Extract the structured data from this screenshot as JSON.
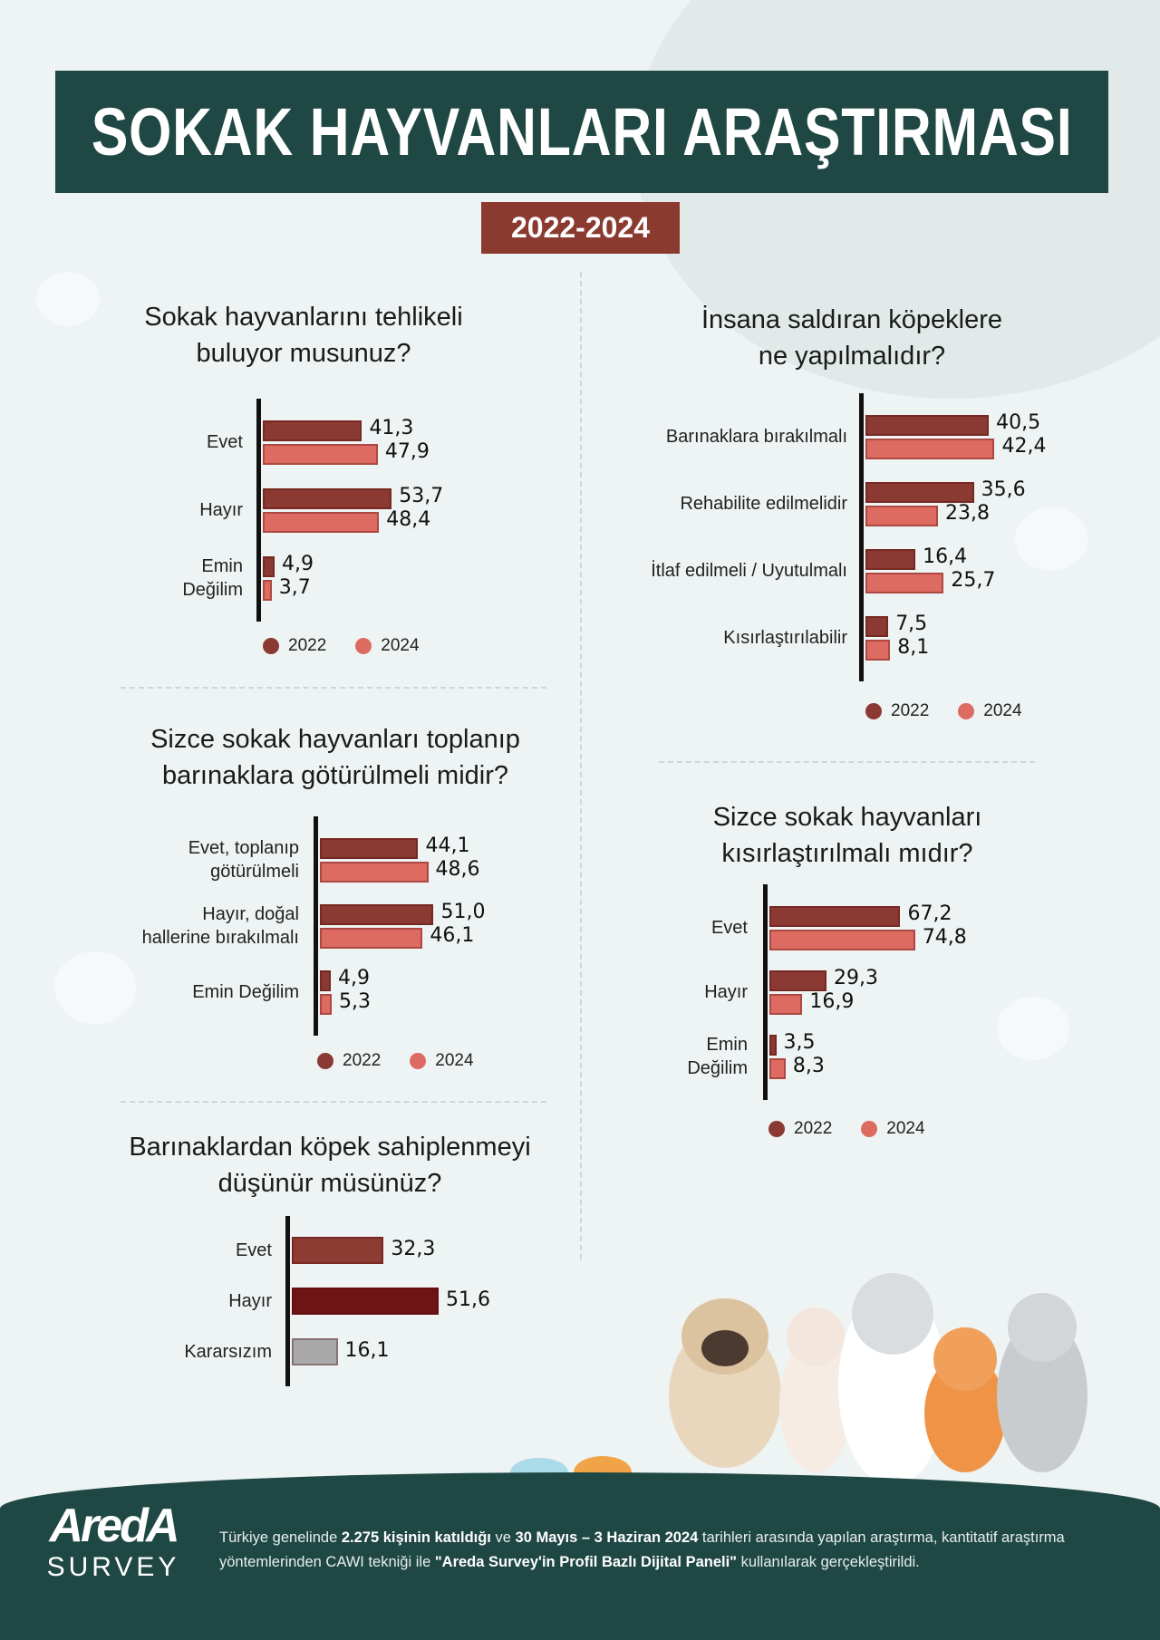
{
  "header": {
    "title": "SOKAK HAYVANLARI ARAŞTIRMASI",
    "years": "2022-2024"
  },
  "colors": {
    "c2022": "#8a3a32",
    "c2024": "#de6b62",
    "banner": "#1f4844",
    "years_box": "#8b3a30"
  },
  "legend": [
    "2022",
    "2024"
  ],
  "chart_data": [
    {
      "type": "bar",
      "orientation": "horizontal",
      "title": [
        "Sokak hayvanlarını tehlikeli",
        "buluyor musunuz?"
      ],
      "categories": [
        [
          "Evet"
        ],
        [
          "Hayır"
        ],
        [
          "Emin",
          "Değilim"
        ]
      ],
      "series": [
        {
          "name": "2022",
          "values": [
            41.3,
            53.7,
            4.9
          ],
          "labels": [
            "41,3",
            "53,7",
            "4,9"
          ]
        },
        {
          "name": "2024",
          "values": [
            47.9,
            48.4,
            3.7
          ],
          "labels": [
            "47,9",
            "48,4",
            "3,7"
          ]
        }
      ],
      "legend": "bottom"
    },
    {
      "type": "bar",
      "orientation": "horizontal",
      "title": [
        "İnsana saldıran köpeklere",
        "ne yapılmalıdır?"
      ],
      "categories": [
        [
          "Barınaklara bırakılmalı"
        ],
        [
          "Rehabilite edilmelidir"
        ],
        [
          "İtlaf edilmeli / Uyutulmalı"
        ],
        [
          "Kısırlaştırılabilir"
        ]
      ],
      "series": [
        {
          "name": "2022",
          "values": [
            40.5,
            35.6,
            16.4,
            7.5
          ],
          "labels": [
            "40,5",
            "35,6",
            "16,4",
            "7,5"
          ]
        },
        {
          "name": "2024",
          "values": [
            42.4,
            23.8,
            25.7,
            8.1
          ],
          "labels": [
            "42,4",
            "23,8",
            "25,7",
            "8,1"
          ]
        }
      ],
      "legend": "bottom"
    },
    {
      "type": "bar",
      "orientation": "horizontal",
      "title": [
        "Sizce sokak hayvanları toplanıp",
        "barınaklara götürülmeli midir?"
      ],
      "categories": [
        [
          "Evet, toplanıp",
          "götürülmeli"
        ],
        [
          "Hayır, doğal",
          "hallerine bırakılmalı"
        ],
        [
          "Emin Değilim"
        ]
      ],
      "series": [
        {
          "name": "2022",
          "values": [
            44.1,
            51.0,
            4.9
          ],
          "labels": [
            "44,1",
            "51,0",
            "4,9"
          ]
        },
        {
          "name": "2024",
          "values": [
            48.6,
            46.1,
            5.3
          ],
          "labels": [
            "48,6",
            "46,1",
            "5,3"
          ]
        }
      ],
      "legend": "bottom"
    },
    {
      "type": "bar",
      "orientation": "horizontal",
      "title": [
        "Sizce sokak hayvanları",
        "kısırlaştırılmalı mıdır?"
      ],
      "categories": [
        [
          "Evet"
        ],
        [
          "Hayır"
        ],
        [
          "Emin",
          "Değilim"
        ]
      ],
      "series": [
        {
          "name": "2022",
          "values": [
            67.2,
            29.3,
            3.5
          ],
          "labels": [
            "67,2",
            "29,3",
            "3,5"
          ]
        },
        {
          "name": "2024",
          "values": [
            74.8,
            16.9,
            8.3
          ],
          "labels": [
            "74,8",
            "16,9",
            "8,3"
          ]
        }
      ],
      "legend": "bottom"
    },
    {
      "type": "bar",
      "orientation": "horizontal",
      "title": [
        "Barınaklardan köpek sahiplenmeyi",
        "düşünür müsünüz?"
      ],
      "categories": [
        [
          "Evet"
        ],
        [
          "Hayır"
        ],
        [
          "Kararsızım"
        ]
      ],
      "series": [
        {
          "values": [
            32.3,
            51.6,
            16.1
          ],
          "labels": [
            "32,3",
            "51,6",
            "16,1"
          ],
          "colors": [
            "#8e3b33",
            "#6e1414",
            "#a9a9a9"
          ]
        }
      ]
    }
  ],
  "footer": {
    "logo": "AredA",
    "logo_sub": "SURVEY",
    "text": [
      {
        "t": "Türkiye genelinde ",
        "b": false
      },
      {
        "t": "2.275 kişinin katıldığı",
        "b": true
      },
      {
        "t": " ve ",
        "b": false
      },
      {
        "t": "30 Mayıs – 3 Haziran 2024",
        "b": true
      },
      {
        "t": " tarihleri arasında yapılan araştırma, kantitatif araştırma yöntemlerinden CAWI tekniği ile ",
        "b": false
      },
      {
        "t": "\"Areda Survey'in Profil Bazlı Dijital Paneli\"",
        "b": true
      },
      {
        "t": " kullanılarak gerçekleştirildi.",
        "b": false
      }
    ]
  }
}
